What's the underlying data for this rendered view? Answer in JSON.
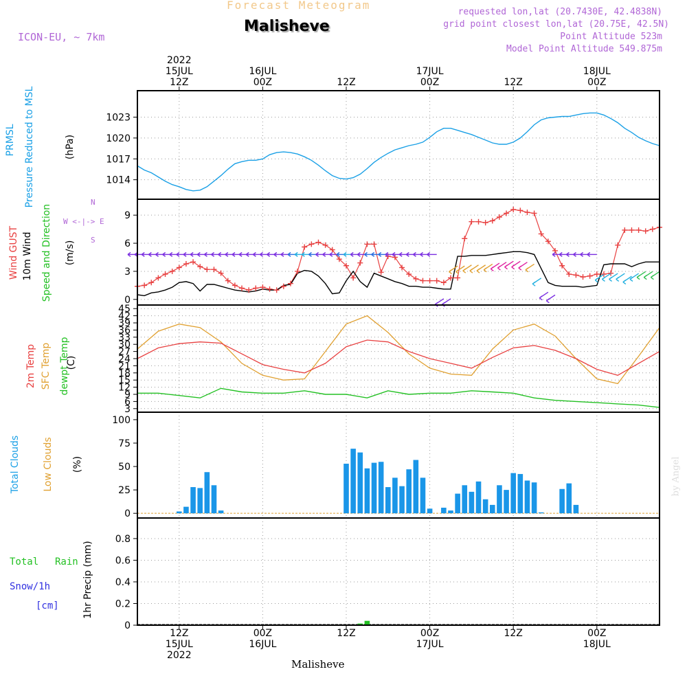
{
  "header": {
    "title": "Forecast Meteogram",
    "station": "Malisheve",
    "model": "ICON-EU, ~ 7km",
    "requested": "requested lon,lat (20.7430E, 42.4838N)",
    "grid_point": "grid point closest lon,lat (20.75E, 42.5N)",
    "point_altitude": "Point Altitude 523m",
    "model_altitude": "Model Point Altitude 549.875m",
    "footer_station": "Malisheve",
    "credit": "by Angel"
  },
  "time_axis": {
    "start_hour": 0,
    "end_hour": 75,
    "ticks_top": [
      {
        "hour": 6,
        "lines": [
          "2022",
          "15JUL",
          "12Z"
        ]
      },
      {
        "hour": 18,
        "lines": [
          "16JUL",
          "00Z"
        ]
      },
      {
        "hour": 30,
        "lines": [
          "12Z"
        ]
      },
      {
        "hour": 42,
        "lines": [
          "17JUL",
          "00Z"
        ]
      },
      {
        "hour": 54,
        "lines": [
          "12Z"
        ]
      },
      {
        "hour": 66,
        "lines": [
          "18JUL",
          "00Z"
        ]
      }
    ],
    "ticks_bottom": [
      {
        "hour": 6,
        "lines": [
          "12Z",
          "15JUL",
          "2022"
        ]
      },
      {
        "hour": 18,
        "lines": [
          "00Z",
          "16JUL"
        ]
      },
      {
        "hour": 30,
        "lines": [
          "12Z"
        ]
      },
      {
        "hour": 42,
        "lines": [
          "00Z",
          "17JUL"
        ]
      },
      {
        "hour": 54,
        "lines": [
          "12Z"
        ]
      },
      {
        "hour": 66,
        "lines": [
          "00Z",
          "18JUL"
        ]
      }
    ]
  },
  "labels": {
    "pressure": {
      "name": "PRMSL",
      "desc": "Pressure Reduced to MSL",
      "unit": "(hPa)"
    },
    "wind": {
      "gust": "Wind GUST",
      "wind10": "10m Wind",
      "speed_dir": "Speed and Direction",
      "unit": "(m/s)",
      "compass_n": "N",
      "compass_s": "S",
      "compass_w": "W",
      "compass_e": "E",
      "compass_arrow": "<-|->"
    },
    "temp": {
      "t2m": "2m Temp",
      "sfc": "SFC Temp",
      "dew": "dewpt Temp",
      "unit": "(C)"
    },
    "clouds": {
      "total": "Total Clouds",
      "low": "Low Clouds",
      "unit": "(%)"
    },
    "precip": {
      "total": "Total",
      "rain": "Rain",
      "snow": "Snow/1h",
      "snow_unit": "[cm]",
      "axis": "1hr Precip (mm)"
    }
  },
  "colors": {
    "pressure": "#1aa0e6",
    "gust": "#e84040",
    "wind10": "#000000",
    "t2m": "#e84040",
    "sfc": "#e0a030",
    "dew": "#22c022",
    "clouds": "#1a96e8",
    "rain": "#22c022",
    "snow": "#3030e0",
    "meta": "#b066d6"
  },
  "chart_data": [
    {
      "type": "line",
      "title": "PRMSL Pressure Reduced to MSL",
      "ylabel": "(hPa)",
      "ylim": [
        1011.2,
        1026.8
      ],
      "yticks": [
        1014,
        1017,
        1020,
        1023
      ],
      "x": [
        0,
        1,
        2,
        3,
        4,
        5,
        6,
        7,
        8,
        9,
        10,
        11,
        12,
        13,
        14,
        15,
        16,
        17,
        18,
        19,
        20,
        21,
        22,
        23,
        24,
        25,
        26,
        27,
        28,
        29,
        30,
        31,
        32,
        33,
        34,
        35,
        36,
        37,
        38,
        39,
        40,
        41,
        42,
        43,
        44,
        45,
        46,
        47,
        48,
        49,
        50,
        51,
        52,
        53,
        54,
        55,
        56,
        57,
        58,
        59,
        60,
        61,
        62,
        63,
        64,
        65,
        66,
        67,
        68,
        69,
        70,
        71,
        72,
        73,
        74,
        75
      ],
      "series": [
        {
          "name": "PRMSL",
          "values": [
            1016.0,
            1015.4,
            1015.0,
            1014.4,
            1013.8,
            1013.3,
            1013.0,
            1012.6,
            1012.4,
            1012.5,
            1013.0,
            1013.8,
            1014.6,
            1015.5,
            1016.3,
            1016.6,
            1016.8,
            1016.8,
            1017.0,
            1017.6,
            1017.9,
            1018.0,
            1017.9,
            1017.7,
            1017.3,
            1016.8,
            1016.1,
            1015.3,
            1014.6,
            1014.2,
            1014.1,
            1014.3,
            1014.8,
            1015.6,
            1016.5,
            1017.2,
            1017.8,
            1018.3,
            1018.6,
            1018.9,
            1019.1,
            1019.4,
            1020.1,
            1020.9,
            1021.4,
            1021.4,
            1021.1,
            1020.8,
            1020.5,
            1020.1,
            1019.7,
            1019.3,
            1019.1,
            1019.1,
            1019.4,
            1020.0,
            1020.9,
            1021.9,
            1022.6,
            1022.9,
            1023.0,
            1023.1,
            1023.1,
            1023.3,
            1023.5,
            1023.6,
            1023.6,
            1023.3,
            1022.8,
            1022.2,
            1021.4,
            1020.8,
            1020.1,
            1019.6,
            1019.2,
            1018.9
          ]
        }
      ]
    },
    {
      "type": "line",
      "title": "Wind GUST / 10m Wind Speed and Direction",
      "ylabel": "(m/s)",
      "ylim": [
        -0.6,
        10.7
      ],
      "yticks": [
        0,
        3,
        6,
        9
      ],
      "x": [
        0,
        1,
        2,
        3,
        4,
        5,
        6,
        7,
        8,
        9,
        10,
        11,
        12,
        13,
        14,
        15,
        16,
        17,
        18,
        19,
        20,
        21,
        22,
        23,
        24,
        25,
        26,
        27,
        28,
        29,
        30,
        31,
        32,
        33,
        34,
        35,
        36,
        37,
        38,
        39,
        40,
        41,
        42,
        43,
        44,
        45,
        46,
        47,
        48,
        49,
        50,
        51,
        52,
        53,
        54,
        55,
        56,
        57,
        58,
        59,
        60,
        61,
        62,
        63,
        64,
        65,
        66,
        67,
        68,
        69,
        70,
        71,
        72,
        73,
        74,
        75
      ],
      "series": [
        {
          "name": "Wind GUST",
          "values": [
            1.4,
            1.5,
            1.8,
            2.3,
            2.7,
            3.0,
            3.4,
            3.8,
            4.0,
            3.5,
            3.2,
            3.2,
            2.8,
            2.0,
            1.5,
            1.2,
            1.0,
            1.2,
            1.3,
            1.1,
            1.0,
            1.4,
            1.7,
            3.0,
            5.6,
            5.9,
            6.1,
            5.8,
            5.3,
            4.3,
            3.6,
            2.3,
            3.9,
            5.9,
            5.9,
            2.9,
            4.6,
            4.5,
            3.4,
            2.7,
            2.2,
            2.0,
            2.0,
            2.0,
            1.8,
            2.3,
            2.3,
            6.5,
            8.3,
            8.3,
            8.2,
            8.4,
            8.8,
            9.2,
            9.6,
            9.5,
            9.3,
            9.2,
            7.0,
            6.2,
            5.2,
            3.6,
            2.7,
            2.6,
            2.4,
            2.5,
            2.7,
            2.7,
            2.8,
            5.8,
            7.4,
            7.4,
            7.4,
            7.3,
            7.5,
            7.7
          ]
        },
        {
          "name": "10m Wind",
          "values": [
            0.5,
            0.4,
            0.7,
            0.8,
            1.0,
            1.3,
            1.8,
            1.9,
            1.7,
            0.9,
            1.6,
            1.6,
            1.4,
            1.2,
            1.0,
            0.9,
            0.8,
            0.9,
            1.1,
            1.0,
            1.0,
            1.5,
            1.6,
            2.8,
            3.1,
            3.0,
            2.5,
            1.7,
            0.6,
            0.7,
            2.0,
            3.0,
            1.9,
            1.3,
            2.8,
            2.5,
            2.2,
            1.9,
            1.7,
            1.4,
            1.4,
            1.3,
            1.3,
            1.2,
            1.1,
            1.1,
            4.6,
            4.6,
            4.7,
            4.7,
            4.7,
            4.8,
            4.9,
            5.0,
            5.1,
            5.1,
            5.0,
            4.8,
            3.3,
            1.8,
            1.5,
            1.4,
            1.4,
            1.4,
            1.3,
            1.4,
            1.5,
            3.7,
            3.8,
            3.8,
            3.8,
            3.5,
            3.8,
            4.0,
            4.0,
            4.0
          ]
        }
      ]
    },
    {
      "type": "line",
      "title": "2m Temp / SFC Temp / dewpt Temp",
      "ylabel": "(C)",
      "ylim": [
        1.5,
        46.5
      ],
      "yticks": [
        3,
        6,
        9,
        12,
        15,
        18,
        21,
        24,
        27,
        30,
        33,
        36,
        39,
        42,
        45
      ],
      "x": [
        0,
        3,
        6,
        9,
        12,
        15,
        18,
        21,
        24,
        27,
        30,
        33,
        36,
        39,
        42,
        45,
        48,
        51,
        54,
        57,
        60,
        63,
        66,
        69,
        72,
        75
      ],
      "series": [
        {
          "name": "2m Temp",
          "values": [
            24.0,
            28.5,
            30.3,
            31.0,
            30.5,
            26.0,
            21.5,
            19.5,
            18.0,
            22.0,
            29.0,
            31.8,
            31.0,
            27.0,
            24.0,
            22.0,
            20.0,
            24.5,
            28.5,
            29.5,
            27.5,
            24.0,
            19.5,
            17.0,
            22.0,
            27.0
          ]
        },
        {
          "name": "SFC Temp",
          "values": [
            28.0,
            35.5,
            38.5,
            37.0,
            31.0,
            22.0,
            17.0,
            15.0,
            15.5,
            27.0,
            38.5,
            42.0,
            35.0,
            26.0,
            20.0,
            17.5,
            17.0,
            28.0,
            36.0,
            38.5,
            33.5,
            24.0,
            15.5,
            13.5,
            25.0,
            37.0
          ]
        },
        {
          "name": "dewpt Temp",
          "values": [
            9.5,
            9.5,
            8.5,
            7.5,
            11.5,
            10.0,
            9.5,
            9.5,
            10.5,
            9.0,
            9.0,
            7.5,
            10.5,
            9.0,
            9.5,
            9.5,
            10.5,
            10.0,
            9.5,
            7.5,
            6.5,
            6.0,
            5.5,
            5.0,
            4.5,
            3.5
          ]
        }
      ]
    },
    {
      "type": "bar",
      "title": "Total Clouds / Low Clouds",
      "ylabel": "(%)",
      "ylim": [
        -5,
        108
      ],
      "yticks": [
        0,
        25,
        50,
        75,
        100
      ],
      "categories": [
        0,
        1,
        2,
        3,
        4,
        5,
        6,
        7,
        8,
        9,
        10,
        11,
        12,
        13,
        14,
        15,
        16,
        17,
        18,
        19,
        20,
        21,
        22,
        23,
        24,
        25,
        26,
        27,
        28,
        29,
        30,
        31,
        32,
        33,
        34,
        35,
        36,
        37,
        38,
        39,
        40,
        41,
        42,
        43,
        44,
        45,
        46,
        47,
        48,
        49,
        50,
        51,
        52,
        53,
        54,
        55,
        56,
        57,
        58,
        59,
        60,
        61,
        62,
        63,
        64,
        65,
        66,
        67,
        68,
        69,
        70,
        71,
        72,
        73,
        74,
        75
      ],
      "series": [
        {
          "name": "Total Clouds",
          "values": [
            0,
            0,
            0,
            0,
            0,
            0,
            2,
            7,
            28,
            27,
            44,
            30,
            3,
            0,
            0,
            0,
            0,
            0,
            0,
            0,
            0,
            0,
            0,
            0,
            0,
            0,
            0,
            0,
            0,
            0,
            53,
            69,
            65,
            48,
            54,
            55,
            28,
            38,
            29,
            47,
            57,
            38,
            5,
            0,
            6,
            3,
            21,
            30,
            23,
            34,
            15,
            9,
            30,
            25,
            43,
            42,
            35,
            33,
            1,
            0,
            0,
            26,
            32,
            9,
            0,
            0,
            0,
            0,
            0,
            0,
            0,
            0,
            0,
            0,
            0,
            0
          ]
        }
      ]
    },
    {
      "type": "bar",
      "title": "1hr Precip (mm)",
      "ylabel": "1hr Precip (mm)",
      "ylim": [
        0,
        0.99
      ],
      "yticks": [
        0,
        0.2,
        0.4,
        0.6,
        0.8
      ],
      "categories": [
        32,
        33
      ],
      "series": [
        {
          "name": "Total Rain",
          "values": [
            0.015,
            0.04
          ]
        }
      ]
    }
  ]
}
